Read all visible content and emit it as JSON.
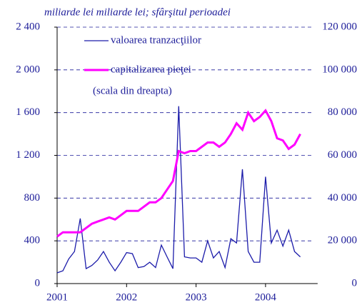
{
  "chart_data": {
    "type": "line",
    "title": "miliarde lei miliarde lei; sfârşitul perioadei",
    "note": "(scala din dreapta)",
    "x": [
      2001,
      2001.083,
      2001.167,
      2001.25,
      2001.333,
      2001.417,
      2001.5,
      2001.583,
      2001.667,
      2001.75,
      2001.833,
      2001.917,
      2002,
      2002.083,
      2002.167,
      2002.25,
      2002.333,
      2002.417,
      2002.5,
      2002.583,
      2002.667,
      2002.75,
      2002.833,
      2002.917,
      2003,
      2003.083,
      2003.167,
      2003.25,
      2003.333,
      2003.417,
      2003.5,
      2003.583,
      2003.667,
      2003.75,
      2003.833,
      2003.917,
      2004,
      2004.083,
      2004.167,
      2004.25,
      2004.333,
      2004.417,
      2004.5
    ],
    "xlim": [
      2001,
      2004.75
    ],
    "xticks": [
      2001,
      2002,
      2003,
      2004
    ],
    "ylim": [
      0,
      2400
    ],
    "yticks": [
      0,
      400,
      800,
      {
        "value": 1200,
        "label": "1 200"
      },
      {
        "value": 1600,
        "label": "1 600"
      },
      {
        "value": 2000,
        "label": "2 000"
      },
      {
        "value": 2400,
        "label": "2 400"
      }
    ],
    "y2lim": [
      0,
      120000
    ],
    "y2ticks": [
      0,
      {
        "value": 20000,
        "label": "20 000"
      },
      {
        "value": 40000,
        "label": "40 000"
      },
      {
        "value": 60000,
        "label": "60 000"
      },
      {
        "value": 80000,
        "label": "80 000"
      },
      {
        "value": 100000,
        "label": "100 000"
      },
      {
        "value": 120000,
        "label": "120 000"
      }
    ],
    "grid": true,
    "series": [
      {
        "name": "valoarea tranzacţiilor",
        "color": "#1c1caa",
        "values": [
          100,
          120,
          230,
          300,
          610,
          140,
          170,
          220,
          300,
          200,
          120,
          200,
          290,
          280,
          150,
          160,
          200,
          150,
          360,
          250,
          140,
          1660,
          250,
          240,
          240,
          200,
          400,
          240,
          300,
          150,
          420,
          380,
          1070,
          300,
          200,
          200,
          1000,
          380,
          500,
          350,
          500,
          300,
          250
        ]
      },
      {
        "name": "capitalizarea pieţei",
        "color": "#ff00ff",
        "axis": "y2",
        "values": [
          22000,
          24000,
          24000,
          24000,
          24000,
          26000,
          28000,
          29000,
          30000,
          31000,
          30000,
          32000,
          34000,
          34000,
          34000,
          36000,
          38000,
          38000,
          40000,
          44000,
          48000,
          62000,
          61000,
          62000,
          62000,
          64000,
          66000,
          66000,
          64000,
          66000,
          70000,
          75000,
          72000,
          80000,
          76000,
          78000,
          81000,
          76000,
          68000,
          67000,
          63000,
          65000,
          70000
        ]
      }
    ]
  }
}
